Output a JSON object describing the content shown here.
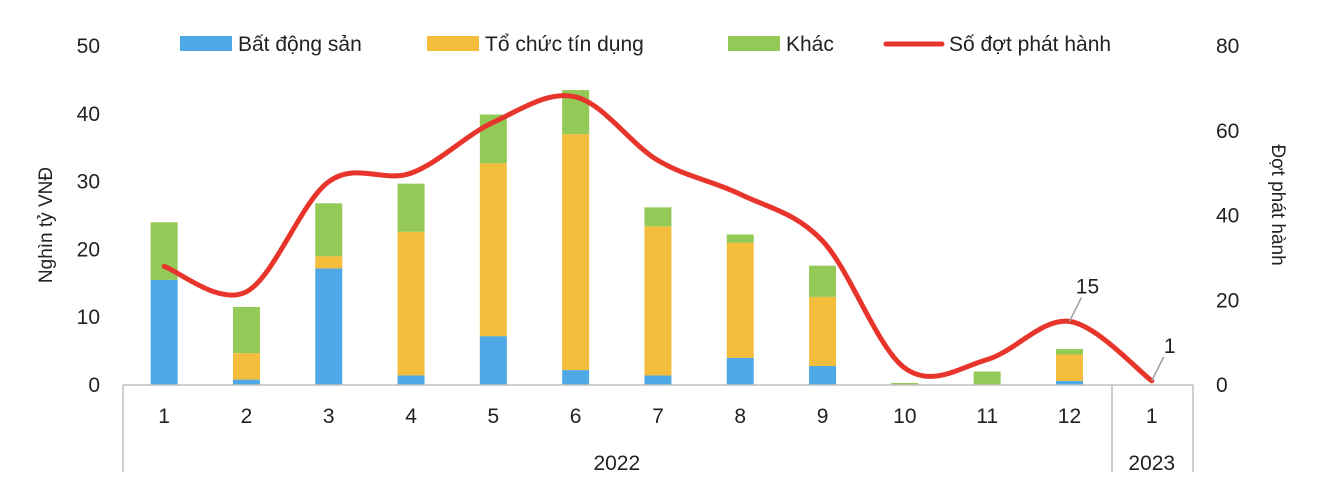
{
  "chart_data": {
    "type": "bar",
    "stacked": true,
    "categories": [
      "1",
      "2",
      "3",
      "4",
      "5",
      "6",
      "7",
      "8",
      "9",
      "10",
      "11",
      "12",
      "1"
    ],
    "groups": [
      {
        "label": "2022",
        "from": 0,
        "to": 11
      },
      {
        "label": "2023",
        "from": 12,
        "to": 12
      }
    ],
    "series": [
      {
        "name": "Bất động sản",
        "color": "#4ea9e6",
        "values": [
          15.5,
          0.8,
          17.2,
          1.4,
          7.2,
          2.2,
          1.4,
          4.0,
          2.8,
          0.0,
          0.0,
          0.6,
          0.0
        ]
      },
      {
        "name": "Tổ chức tín dụng",
        "color": "#f5bd3c",
        "values": [
          0.0,
          3.9,
          1.8,
          21.2,
          25.5,
          34.8,
          22.0,
          17.0,
          10.2,
          0.0,
          0.0,
          3.9,
          0.0
        ]
      },
      {
        "name": "Khác",
        "color": "#92c957",
        "values": [
          8.5,
          6.8,
          7.8,
          7.1,
          7.2,
          6.5,
          2.8,
          1.2,
          4.6,
          0.3,
          2.0,
          0.8,
          0.0
        ]
      }
    ],
    "line": {
      "name": "Số đợt phát hành",
      "color": "#e8352b",
      "axis": "right",
      "values": [
        28,
        22,
        48,
        50,
        62,
        68,
        53,
        45,
        34,
        4,
        6,
        15,
        1
      ]
    },
    "annotations": [
      {
        "index": 11,
        "text": "15"
      },
      {
        "index": 12,
        "text": "1"
      }
    ],
    "ylabel": "Nghìn tỷ VNĐ",
    "y2label": "Đợt phát hành",
    "ylim": [
      0,
      50
    ],
    "y2lim": [
      0,
      80
    ],
    "yticks": [
      0,
      10,
      20,
      30,
      40,
      50
    ],
    "y2ticks": [
      0,
      20,
      40,
      60,
      80
    ],
    "legend_position": "top",
    "grid": false
  }
}
